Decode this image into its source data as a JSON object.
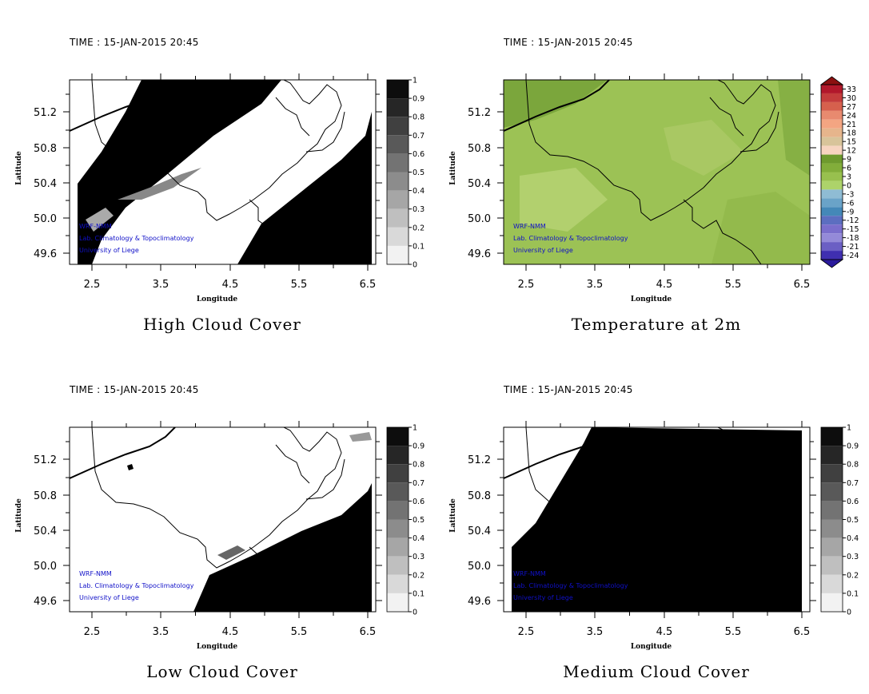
{
  "colors": {
    "cloud": "#000000",
    "credit": "#1010c8",
    "border": "#000000",
    "temp_base": "#a4c45a"
  },
  "panels": [
    {
      "id": "high-cloud",
      "time_label": "TIME : 15-JAN-2015 20:45",
      "title": "High Cloud Cover",
      "field": "high",
      "x_ticks": [
        "2.5",
        "3.5",
        "4.5",
        "5.5",
        "6.5"
      ],
      "y_ticks": [
        "51.2",
        "50.8",
        "50.4",
        "50.0",
        "49.6"
      ],
      "x_label": "Longitude",
      "y_label": "Latitude",
      "colorbar": [
        "1",
        "0.9",
        "0.8",
        "0.7",
        "0.6",
        "0.5",
        "0.4",
        "0.3",
        "0.2",
        "0.1",
        "0"
      ],
      "credits": [
        "WRF-NMM",
        "Lab. Climatology & Topoclimatology",
        "University of Liege"
      ]
    },
    {
      "id": "temperature-2m",
      "time_label": "TIME : 15-JAN-2015 20:45",
      "title": "Temperature at 2m",
      "field": "temp",
      "x_ticks": [
        "2.5",
        "3.5",
        "4.5",
        "5.5",
        "6.5"
      ],
      "y_ticks": [
        "51.2",
        "50.8",
        "50.4",
        "50.0",
        "49.6"
      ],
      "x_label": "Longitude",
      "y_label": "Latitude",
      "colorbar": [
        "33",
        "30",
        "27",
        "24",
        "21",
        "18",
        "15",
        "12",
        "9",
        "6",
        "3",
        "0",
        "-3",
        "-6",
        "-9",
        "-12",
        "-15",
        "-18",
        "-21",
        "-24"
      ],
      "credits": [
        "WRF-NMM",
        "Lab. Climatology & Topoclimatology",
        "University of Liege"
      ]
    },
    {
      "id": "low-cloud",
      "time_label": "TIME : 15-JAN-2015 20:45",
      "title": "Low Cloud Cover",
      "field": "low",
      "x_ticks": [
        "2.5",
        "3.5",
        "4.5",
        "5.5",
        "6.5"
      ],
      "y_ticks": [
        "51.2",
        "50.8",
        "50.4",
        "50.0",
        "49.6"
      ],
      "x_label": "Longitude",
      "y_label": "Latitude",
      "colorbar": [
        "1",
        "0.9",
        "0.8",
        "0.7",
        "0.6",
        "0.5",
        "0.4",
        "0.3",
        "0.2",
        "0.1",
        "0"
      ],
      "credits": [
        "WRF-NMM",
        "Lab. Climatology & Topoclimatology",
        "University of Liege"
      ]
    },
    {
      "id": "medium-cloud",
      "time_label": "TIME : 15-JAN-2015 20:45",
      "title": "Medium Cloud Cover",
      "field": "medium",
      "x_ticks": [
        "2.5",
        "3.5",
        "4.5",
        "5.5",
        "6.5"
      ],
      "y_ticks": [
        "51.2",
        "50.8",
        "50.4",
        "50.0",
        "49.6"
      ],
      "x_label": "Longitude",
      "y_label": "Latitude",
      "colorbar": [
        "1",
        "0.9",
        "0.8",
        "0.7",
        "0.6",
        "0.5",
        "0.4",
        "0.3",
        "0.2",
        "0.1",
        "0"
      ],
      "credits": [
        "WRF-NMM",
        "Lab. Climatology & Topoclimatology",
        "University of Liege"
      ]
    }
  ]
}
